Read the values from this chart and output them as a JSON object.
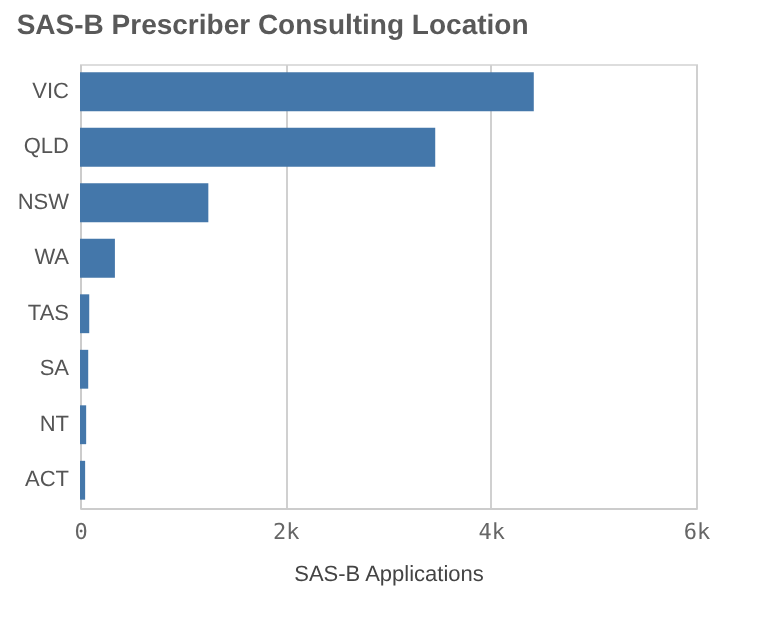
{
  "chart_data": {
    "type": "bar",
    "orientation": "horizontal",
    "title": "SAS-B Prescriber Consulting Location",
    "xlabel": "SAS-B Applications",
    "categories": [
      "VIC",
      "QLD",
      "NSW",
      "WA",
      "TAS",
      "SA",
      "NT",
      "ACT"
    ],
    "values": [
      4420,
      3460,
      1250,
      340,
      90,
      80,
      60,
      50
    ],
    "color": "#4477aa",
    "xlim": [
      0,
      6000
    ],
    "xticks": [
      0,
      {
        "value": 2000,
        "label": "2k"
      },
      {
        "value": 4000,
        "label": "4k"
      },
      {
        "value": 6000,
        "label": "6k"
      }
    ],
    "grid": "x"
  }
}
